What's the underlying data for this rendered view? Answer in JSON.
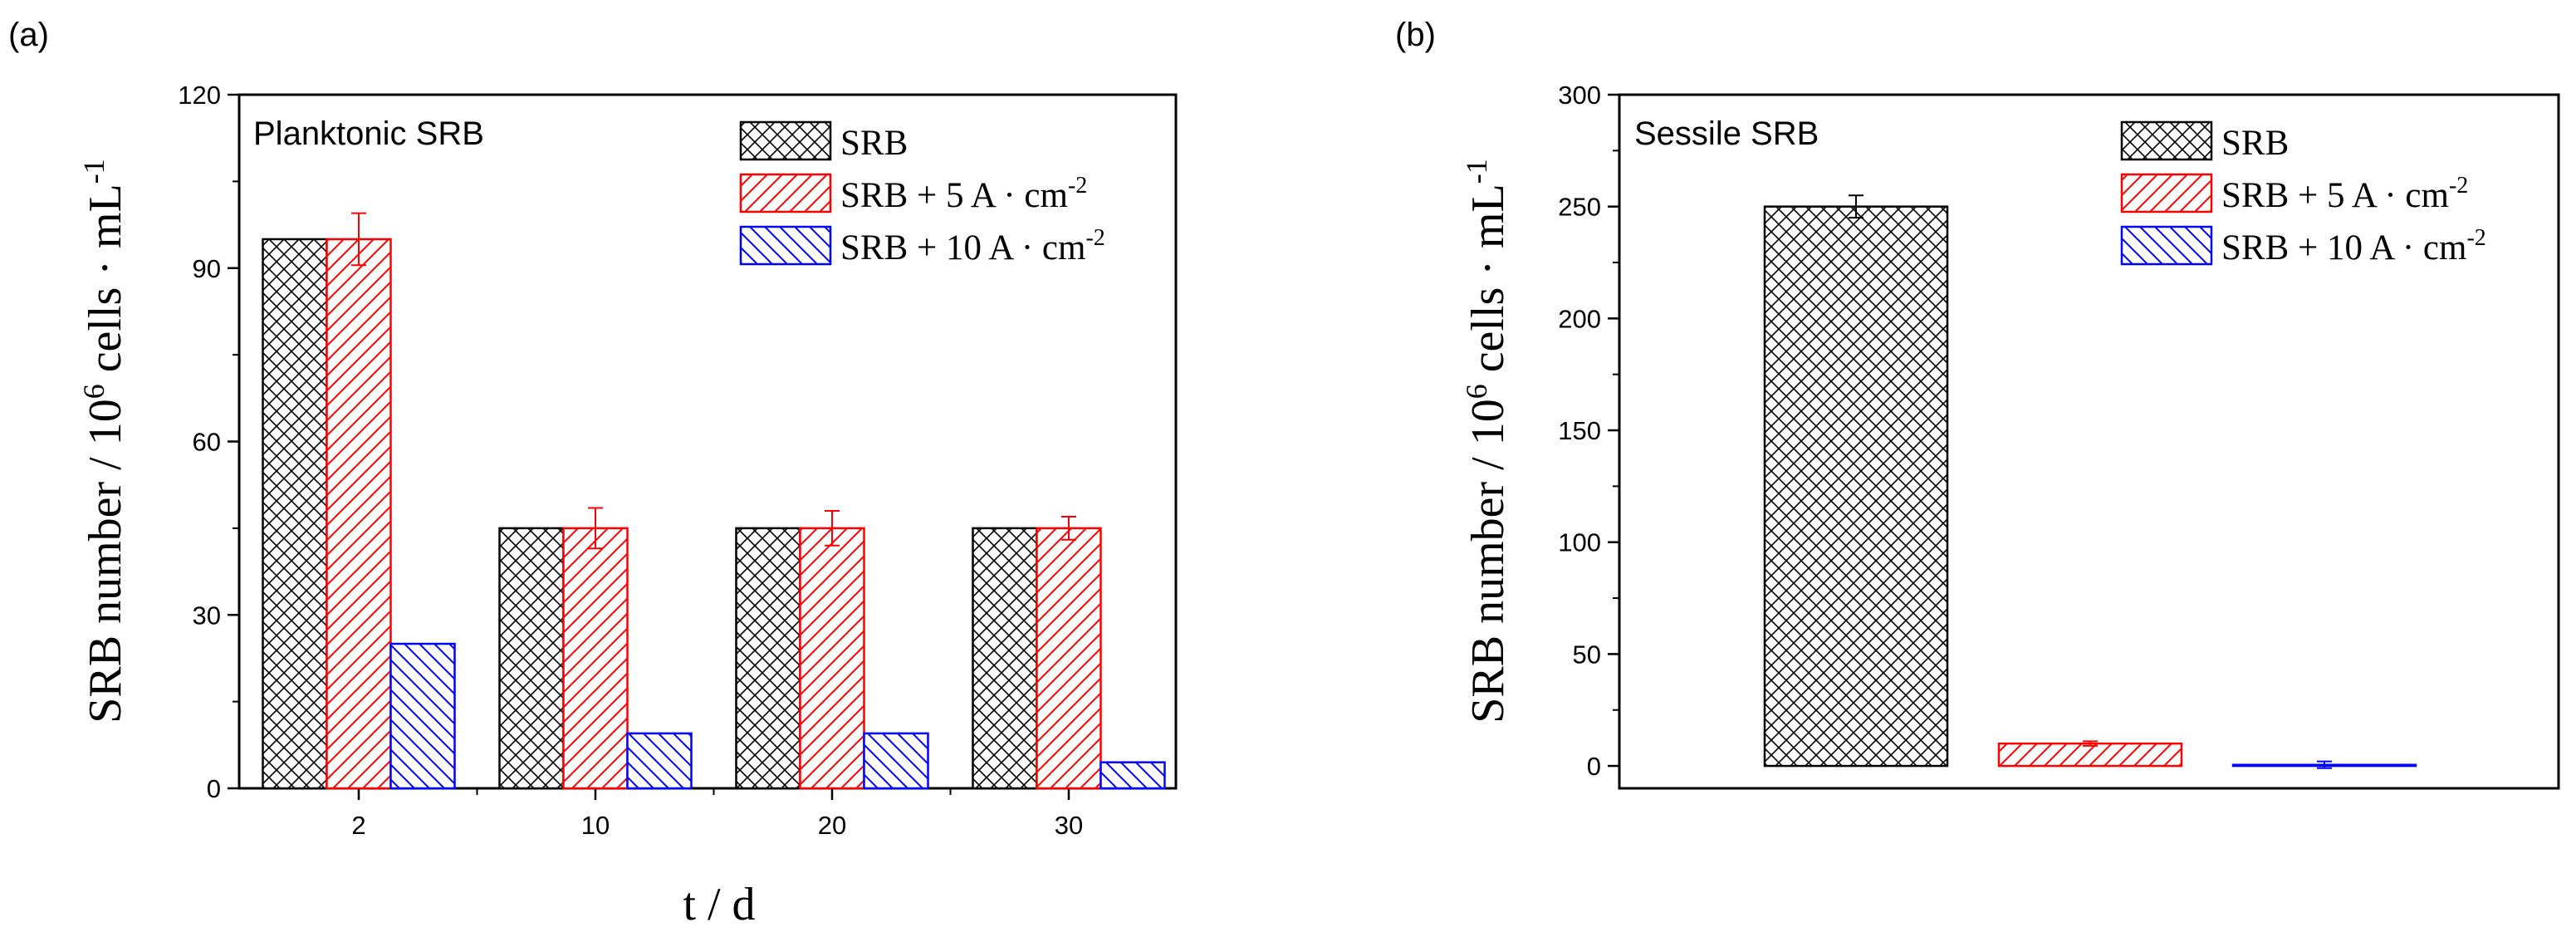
{
  "chart_data": [
    {
      "type": "bar",
      "panel_label": "(a)",
      "title": "Planktonic SRB",
      "xlabel": "t / d",
      "ylabel": "SRB number / 10^6 cells · mL^-1",
      "ylabel_parts": {
        "pre": "SRB number / 10",
        "exp1": "6",
        "mid": " cells · mL",
        "exp2": "-1"
      },
      "categories": [
        "2",
        "10",
        "20",
        "30"
      ],
      "ylim": [
        0,
        120
      ],
      "yticks": [
        0,
        30,
        60,
        90,
        120
      ],
      "series": [
        {
          "name": "SRB",
          "name_base": "SRB",
          "name_sup": "",
          "values": [
            95,
            45,
            45,
            45
          ],
          "errors": [
            0,
            0,
            0,
            0
          ],
          "color": "#000000",
          "pattern": "crosshatch"
        },
        {
          "name": "SRB + 5 A · cm-2",
          "name_base": "SRB + 5 A · cm",
          "name_sup": "-2",
          "values": [
            95,
            45,
            45,
            45
          ],
          "errors": [
            4.5,
            3.5,
            3,
            2
          ],
          "color": "#ff0000",
          "pattern": "forward-diagonal"
        },
        {
          "name": "SRB + 10 A · cm-2",
          "name_base": "SRB + 10 A · cm",
          "name_sup": "-2",
          "values": [
            25,
            9.5,
            9.5,
            4.5
          ],
          "errors": [
            0,
            0,
            0,
            0
          ],
          "color": "#0000ff",
          "pattern": "back-diagonal"
        }
      ]
    },
    {
      "type": "bar",
      "panel_label": "(b)",
      "title": "Sessile SRB",
      "xlabel": "",
      "ylabel": "SRB number / 10^6 cells · mL^-1",
      "ylabel_parts": {
        "pre": "SRB number / 10",
        "exp1": "6",
        "mid": " cells · mL",
        "exp2": "-1"
      },
      "categories": [
        ""
      ],
      "ylim": [
        -10,
        300
      ],
      "yticks": [
        0,
        50,
        100,
        150,
        200,
        250,
        300
      ],
      "series": [
        {
          "name": "SRB",
          "name_base": "SRB",
          "name_sup": "",
          "values": [
            250
          ],
          "errors": [
            5
          ],
          "color": "#000000",
          "pattern": "crosshatch"
        },
        {
          "name": "SRB + 5 A · cm-2",
          "name_base": "SRB + 5 A · cm",
          "name_sup": "-2",
          "values": [
            10
          ],
          "errors": [
            1
          ],
          "color": "#ff0000",
          "pattern": "forward-diagonal"
        },
        {
          "name": "SRB + 10 A · cm-2",
          "name_base": "SRB + 10 A · cm",
          "name_sup": "-2",
          "values": [
            0.5
          ],
          "errors": [
            1.5
          ],
          "color": "#0000ff",
          "pattern": "back-diagonal"
        }
      ]
    }
  ]
}
